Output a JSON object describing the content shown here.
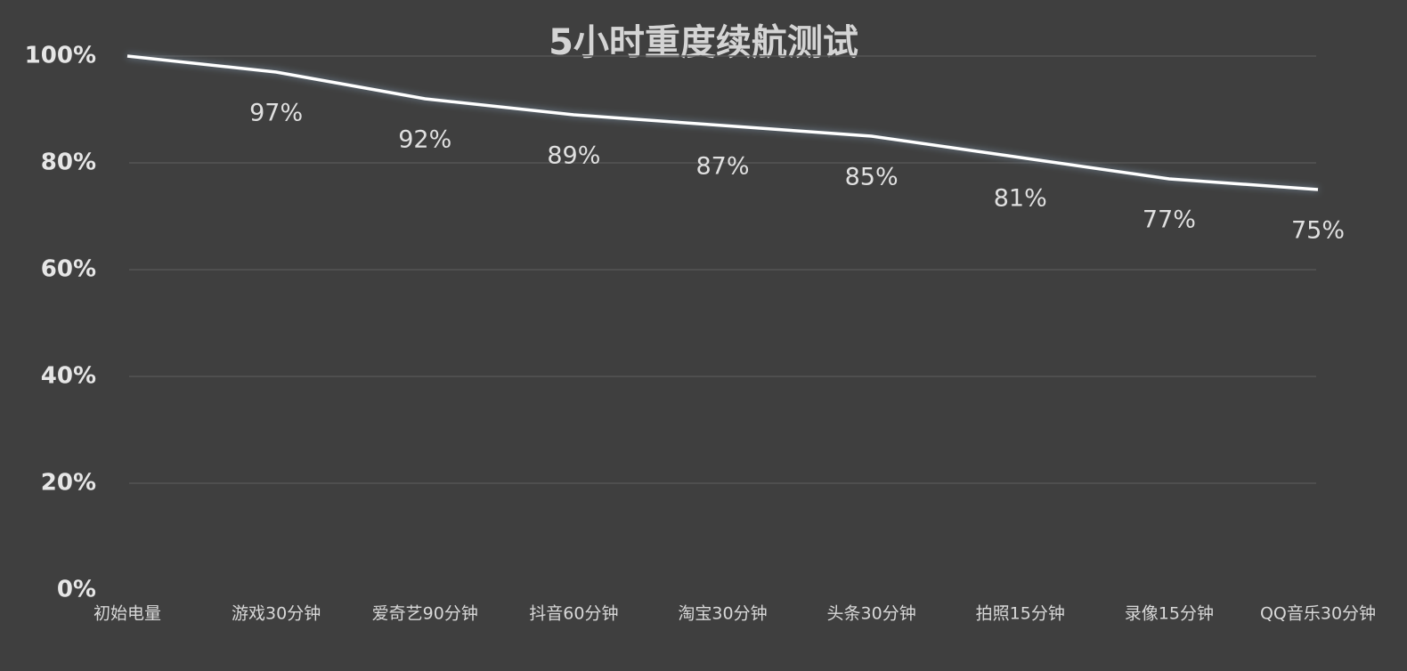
{
  "chart_data": {
    "type": "line",
    "title": "5小时重度续航测试",
    "categories": [
      "初始电量",
      "游戏30分钟",
      "爱奇艺90分钟",
      "抖音60分钟",
      "淘宝30分钟",
      "头条30分钟",
      "拍照15分钟",
      "录像15分钟",
      "QQ音乐30分钟"
    ],
    "values": [
      100,
      97,
      92,
      89,
      87,
      85,
      81,
      77,
      75
    ],
    "value_labels": [
      null,
      "97%",
      "92%",
      "89%",
      "87%",
      "85%",
      "81%",
      "77%",
      "75%"
    ],
    "color": "#ffffff",
    "ylim": [
      0,
      100
    ],
    "yticks": [
      {
        "value": 0,
        "label": "0%"
      },
      {
        "value": 20,
        "label": "20%"
      },
      {
        "value": 40,
        "label": "40%"
      },
      {
        "value": 60,
        "label": "60%"
      },
      {
        "value": 80,
        "label": "80%"
      },
      {
        "value": 100,
        "label": "100%"
      }
    ],
    "grid": true
  }
}
